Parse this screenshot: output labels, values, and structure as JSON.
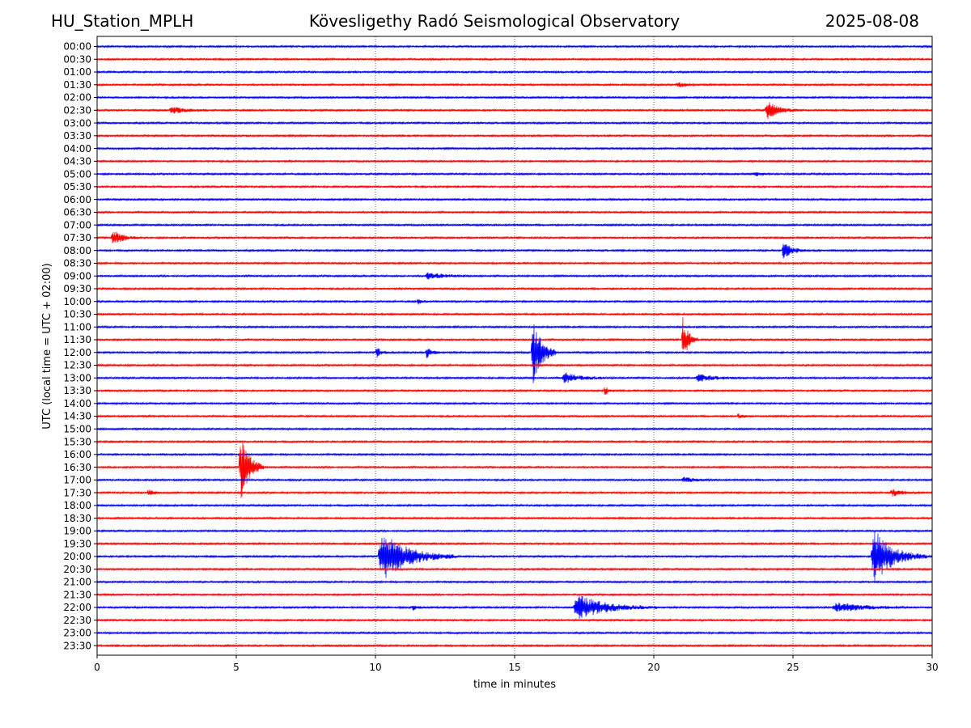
{
  "header": {
    "station": "HU_Station_MPLH",
    "observatory": "Kövesligethy Radó Seismological Observatory",
    "date": "2025-08-08"
  },
  "chart_data": {
    "type": "line",
    "title": "Kövesligethy Radó Seismological Observatory",
    "xlabel": "time in minutes",
    "ylabel": "UTC (local time = UTC + 02:00)",
    "xlim": [
      0,
      30
    ],
    "xticks": [
      0,
      5,
      10,
      15,
      20,
      25,
      30
    ],
    "grid_x": "dotted vertical lines at 5, 10, 15, 20, 25",
    "colors": {
      "even_rows": "#0000ff",
      "odd_rows": "#ff0000"
    },
    "rows": [
      "00:00",
      "00:30",
      "01:00",
      "01:30",
      "02:00",
      "02:30",
      "03:00",
      "03:30",
      "04:00",
      "04:30",
      "05:00",
      "05:30",
      "06:00",
      "06:30",
      "07:00",
      "07:30",
      "08:00",
      "08:30",
      "09:00",
      "09:30",
      "10:00",
      "10:30",
      "11:00",
      "11:30",
      "12:00",
      "12:30",
      "13:00",
      "13:30",
      "14:00",
      "14:30",
      "15:00",
      "15:30",
      "16:00",
      "16:30",
      "17:00",
      "17:30",
      "18:00",
      "18:30",
      "19:00",
      "19:30",
      "20:00",
      "20:30",
      "21:00",
      "21:30",
      "22:00",
      "22:30",
      "23:00",
      "23:30"
    ],
    "events": [
      {
        "row": "01:30",
        "start_min": 20.8,
        "dur_min": 0.8,
        "amp": 0.25
      },
      {
        "row": "02:30",
        "start_min": 2.6,
        "dur_min": 1.4,
        "amp": 0.35
      },
      {
        "row": "02:30",
        "start_min": 24.0,
        "dur_min": 1.2,
        "amp": 0.9
      },
      {
        "row": "05:00",
        "start_min": 23.6,
        "dur_min": 0.6,
        "amp": 0.2
      },
      {
        "row": "07:30",
        "start_min": 0.5,
        "dur_min": 1.0,
        "amp": 0.8
      },
      {
        "row": "08:00",
        "start_min": 24.6,
        "dur_min": 0.9,
        "amp": 0.85
      },
      {
        "row": "09:00",
        "start_min": 11.8,
        "dur_min": 1.6,
        "amp": 0.35
      },
      {
        "row": "10:00",
        "start_min": 11.5,
        "dur_min": 0.4,
        "amp": 0.25
      },
      {
        "row": "11:30",
        "start_min": 21.0,
        "dur_min": 0.6,
        "amp": 2.2
      },
      {
        "row": "12:00",
        "start_min": 10.0,
        "dur_min": 0.5,
        "amp": 0.55
      },
      {
        "row": "12:00",
        "start_min": 11.8,
        "dur_min": 0.5,
        "amp": 0.7
      },
      {
        "row": "12:00",
        "start_min": 15.6,
        "dur_min": 0.9,
        "amp": 3.6
      },
      {
        "row": "13:00",
        "start_min": 16.7,
        "dur_min": 1.6,
        "amp": 0.5
      },
      {
        "row": "13:00",
        "start_min": 21.5,
        "dur_min": 1.8,
        "amp": 0.35
      },
      {
        "row": "13:30",
        "start_min": 18.2,
        "dur_min": 0.4,
        "amp": 0.45
      },
      {
        "row": "14:30",
        "start_min": 23.0,
        "dur_min": 0.6,
        "amp": 0.25
      },
      {
        "row": "16:30",
        "start_min": 5.1,
        "dur_min": 0.9,
        "amp": 3.6
      },
      {
        "row": "17:00",
        "start_min": 21.0,
        "dur_min": 1.2,
        "amp": 0.25
      },
      {
        "row": "17:30",
        "start_min": 1.8,
        "dur_min": 0.6,
        "amp": 0.3
      },
      {
        "row": "17:30",
        "start_min": 28.5,
        "dur_min": 1.2,
        "amp": 0.35
      },
      {
        "row": "20:00",
        "start_min": 10.1,
        "dur_min": 2.8,
        "amp": 2.3
      },
      {
        "row": "20:00",
        "start_min": 27.8,
        "dur_min": 2.0,
        "amp": 2.6
      },
      {
        "row": "22:00",
        "start_min": 11.3,
        "dur_min": 0.5,
        "amp": 0.3
      },
      {
        "row": "22:00",
        "start_min": 17.1,
        "dur_min": 3.0,
        "amp": 1.2
      },
      {
        "row": "22:00",
        "start_min": 26.4,
        "dur_min": 3.0,
        "amp": 0.45
      }
    ]
  }
}
